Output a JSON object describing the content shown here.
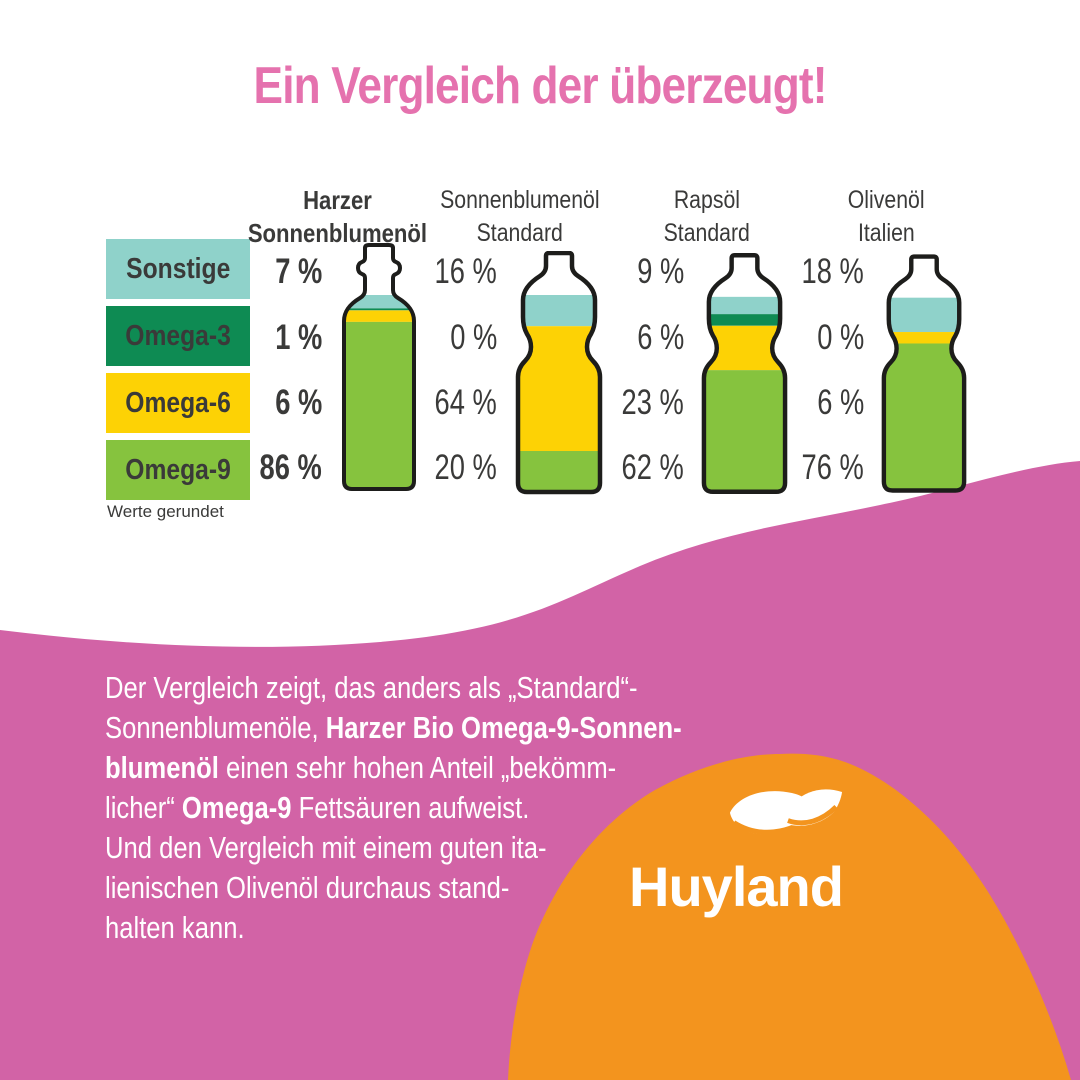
{
  "title": "Ein Vergleich der überzeugt!",
  "note": "Werte gerundet",
  "colors": {
    "title_pink": "#e572ae",
    "wave_pink": "#d263a6",
    "blob_orange": "#f3941e",
    "outline": "#1d1d1b",
    "text_dark": "#3a3a39",
    "sonstige_teal": "#8fd2ca",
    "omega3_green": "#0e8b53",
    "omega6_yellow": "#fdd205",
    "omega9_green": "#86c33e"
  },
  "legend": [
    {
      "label": "Sonstige",
      "color_key": "sonstige_teal"
    },
    {
      "label": "Omega-3",
      "color_key": "omega3_green"
    },
    {
      "label": "Omega-6",
      "color_key": "omega6_yellow"
    },
    {
      "label": "Omega-9",
      "color_key": "omega9_green"
    }
  ],
  "chart_data": {
    "type": "bar",
    "subtype": "stacked-percentage-bottles",
    "unit": "%",
    "note": "Werte gerundet",
    "stack_categories": [
      "Sonstige",
      "Omega-3",
      "Omega-6",
      "Omega-9"
    ],
    "series": [
      {
        "name": "Harzer Sonnenblumenöl",
        "name_lines": [
          "Harzer",
          "Sonnenblumenöl"
        ],
        "emphasis": true,
        "bottle": "glass",
        "values": [
          7,
          1,
          6,
          86
        ],
        "labels": [
          "7 %",
          "1 %",
          "6 %",
          "86 %"
        ]
      },
      {
        "name": "Sonnenblumenöl Standard",
        "name_lines": [
          "Sonnenblumenöl",
          "Standard"
        ],
        "emphasis": false,
        "bottle": "plastic",
        "values": [
          16,
          0,
          64,
          20
        ],
        "labels": [
          "16 %",
          "0 %",
          "64 %",
          "20 %"
        ]
      },
      {
        "name": "Rapsöl Standard",
        "name_lines": [
          "Rapsöl",
          "Standard"
        ],
        "emphasis": false,
        "bottle": "plastic",
        "values": [
          9,
          6,
          23,
          62
        ],
        "labels": [
          "9 %",
          "6 %",
          "23 %",
          "62 %"
        ]
      },
      {
        "name": "Olivenöl Italien",
        "name_lines": [
          "Olivenöl",
          "Italien"
        ],
        "emphasis": false,
        "bottle": "plastic",
        "values": [
          18,
          0,
          6,
          76
        ],
        "labels": [
          "18 %",
          "0 %",
          "6 %",
          "76 %"
        ]
      }
    ]
  },
  "body": {
    "lines": [
      [
        {
          "t": "Der Vergleich zeigt, das anders als „Standard“-"
        }
      ],
      [
        {
          "t": "Sonnenblumenöle, "
        },
        {
          "t": "Harzer Bio Omega-9-Sonnen-",
          "b": true
        }
      ],
      [
        {
          "t": "blumenöl",
          "b": true
        },
        {
          "t": " einen sehr hohen Anteil „bekömm-"
        }
      ],
      [
        {
          "t": "licher“ "
        },
        {
          "t": "Omega-9",
          "b": true
        },
        {
          "t": " Fettsäuren aufweist."
        }
      ],
      [
        {
          "t": "Und den Vergleich mit einem guten ita-"
        }
      ],
      [
        {
          "t": "lienischen Olivenöl durchaus stand-"
        }
      ],
      [
        {
          "t": "halten kann."
        }
      ]
    ]
  },
  "logo": {
    "name": "Huyland",
    "icon": "leaf-fan-icon"
  }
}
